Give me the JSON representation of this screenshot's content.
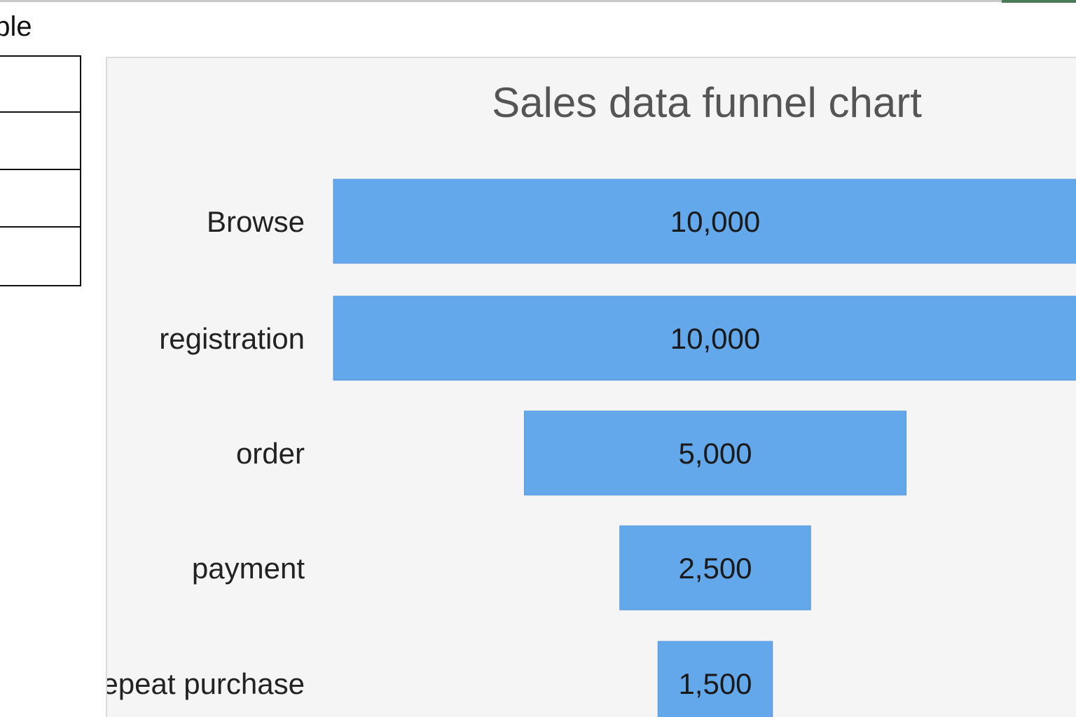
{
  "sheet": {
    "column_header_text": "ople",
    "grid_rows": 4
  },
  "colors": {
    "bar": "#64a8ec",
    "bar_stroke": "#5596da",
    "panel_bg": "#f5f5f5",
    "title": "#555555"
  },
  "chart_data": {
    "type": "funnel",
    "title": "Sales data funnel chart",
    "categories": [
      "Browse",
      "registration",
      "order",
      "payment",
      "repeat purchase"
    ],
    "values": [
      10000,
      10000,
      5000,
      2500,
      1500
    ],
    "value_labels": [
      "10,000",
      "10,000",
      "5,000",
      "2,500",
      "1,500"
    ],
    "legend": "none",
    "grid": false
  }
}
